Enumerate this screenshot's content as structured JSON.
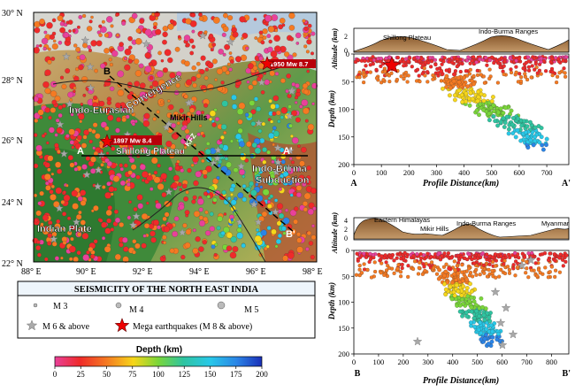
{
  "map": {
    "lat_labels": [
      "30° N",
      "28° N",
      "26° N",
      "24° N",
      "22° N"
    ],
    "lon_labels": [
      "88° E",
      "90° E",
      "92° E",
      "94° E",
      "96° E",
      "98° E"
    ],
    "labels": {
      "b": "B",
      "b_prime": "B'",
      "a": "A",
      "a_prime": "A'",
      "indo_eurasian": "Indo-Eurasian",
      "convergence": "Convergence",
      "mikir_hills": "Mikir Hills",
      "kfz": "KFZ",
      "quake_1897": "1897 Mw 8.4",
      "quake_1950": "1950 Mw 8.7",
      "shillong_plateau": "Shillong Plateau",
      "indo_burma": "Indo-Burma",
      "subduction": "Subduction",
      "indian_plate": "Indian Plate"
    }
  },
  "legend": {
    "title": "SEISMICITY OF THE NORTH EAST INDIA",
    "m3": "M 3",
    "m4": "M 4",
    "m5": "M 5",
    "m6": "M 6 & above",
    "mega": "Mega earthquakes (M 8 & above)"
  },
  "colorbar": {
    "title": "Depth (km)",
    "ticks": [
      "0",
      "25",
      "50",
      "75",
      "100",
      "125",
      "150",
      "175",
      "200"
    ],
    "colors": [
      "#e9419a",
      "#ef2a2a",
      "#f57a22",
      "#f6d61a",
      "#7ad63a",
      "#2fc4a0",
      "#28c8e8",
      "#2b84e6",
      "#1a2fb8"
    ]
  },
  "profile_a": {
    "altitude_label": "Altitude (km)",
    "depth_label": "Depth (km)",
    "xlabel": "Profile Distance(km)",
    "top_labels": {
      "shillong": "Shillong Plateau",
      "indo_burma": "Indo-Burma Ranges"
    },
    "alt_ticks": [
      "2",
      "0"
    ],
    "depth_ticks": [
      "0",
      "50",
      "100",
      "150",
      "200"
    ],
    "x_ticks": [
      "0",
      "100",
      "200",
      "300",
      "400",
      "500",
      "600",
      "700"
    ],
    "left_end": "A",
    "right_end": "A'"
  },
  "profile_b": {
    "altitude_label": "Altitude (km)",
    "depth_label": "Depth (km)",
    "xlabel": "Profile Distance(km)",
    "top_labels": {
      "eastern_himalayas": "Eastern Himalayas",
      "mikir": "Mikir Hills",
      "indo_burma": "Indo-Burma Ranges",
      "myanmar": "Myanmar"
    },
    "alt_ticks": [
      "4",
      "2",
      "0"
    ],
    "depth_ticks": [
      "0",
      "50",
      "100",
      "150",
      "200"
    ],
    "x_ticks": [
      "0",
      "100",
      "200",
      "300",
      "400",
      "500",
      "600",
      "700",
      "800"
    ],
    "left_end": "B",
    "right_end": "B'"
  }
}
